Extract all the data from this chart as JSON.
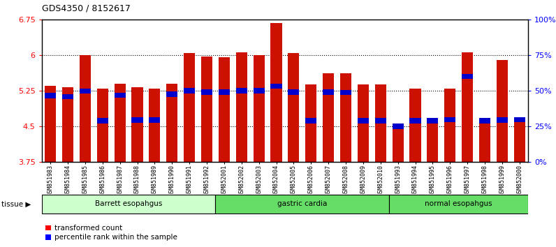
{
  "title": "GDS4350 / 8152617",
  "samples": [
    "GSM851983",
    "GSM851984",
    "GSM851985",
    "GSM851986",
    "GSM851987",
    "GSM851988",
    "GSM851989",
    "GSM851990",
    "GSM851991",
    "GSM851992",
    "GSM852001",
    "GSM852002",
    "GSM852003",
    "GSM852004",
    "GSM852005",
    "GSM852006",
    "GSM852007",
    "GSM852008",
    "GSM852009",
    "GSM852010",
    "GSM851993",
    "GSM851994",
    "GSM851995",
    "GSM851996",
    "GSM851997",
    "GSM851998",
    "GSM851999",
    "GSM852000"
  ],
  "red_values": [
    5.36,
    5.33,
    6.01,
    5.29,
    5.4,
    5.32,
    5.29,
    5.4,
    6.04,
    5.98,
    5.96,
    6.06,
    6.01,
    6.68,
    6.05,
    5.38,
    5.62,
    5.62,
    5.38,
    5.38,
    4.5,
    5.3,
    4.66,
    5.3,
    6.06,
    4.65,
    5.9,
    4.65
  ],
  "blue_values": [
    5.15,
    5.13,
    5.24,
    4.62,
    5.16,
    4.63,
    4.63,
    5.18,
    5.25,
    5.22,
    5.22,
    5.25,
    5.25,
    5.35,
    5.22,
    4.62,
    5.22,
    5.21,
    4.62,
    4.62,
    4.5,
    4.62,
    4.62,
    4.64,
    5.55,
    4.62,
    4.63,
    4.64
  ],
  "tissue_groups": [
    {
      "label": "Barrett esopahgus",
      "start": 0,
      "end": 10,
      "color": "#ccffcc"
    },
    {
      "label": "gastric cardia",
      "start": 10,
      "end": 20,
      "color": "#66dd66"
    },
    {
      "label": "normal esopahgus",
      "start": 20,
      "end": 28,
      "color": "#66dd66"
    }
  ],
  "ylim_left": [
    3.75,
    6.75
  ],
  "ylim_right": [
    0,
    100
  ],
  "yticks_left": [
    3.75,
    4.5,
    5.25,
    6.0,
    6.75
  ],
  "ytick_labels_left": [
    "3.75",
    "4.5",
    "5.25",
    "6",
    "6.75"
  ],
  "yticks_right": [
    0,
    25,
    50,
    75,
    100
  ],
  "ytick_labels_right": [
    "0%",
    "25%",
    "50%",
    "75%",
    "100%"
  ],
  "grid_values": [
    4.5,
    5.25,
    6.0
  ],
  "bar_color": "#cc1100",
  "marker_color": "#0000cc",
  "bar_width": 0.65,
  "base_value": 3.75
}
